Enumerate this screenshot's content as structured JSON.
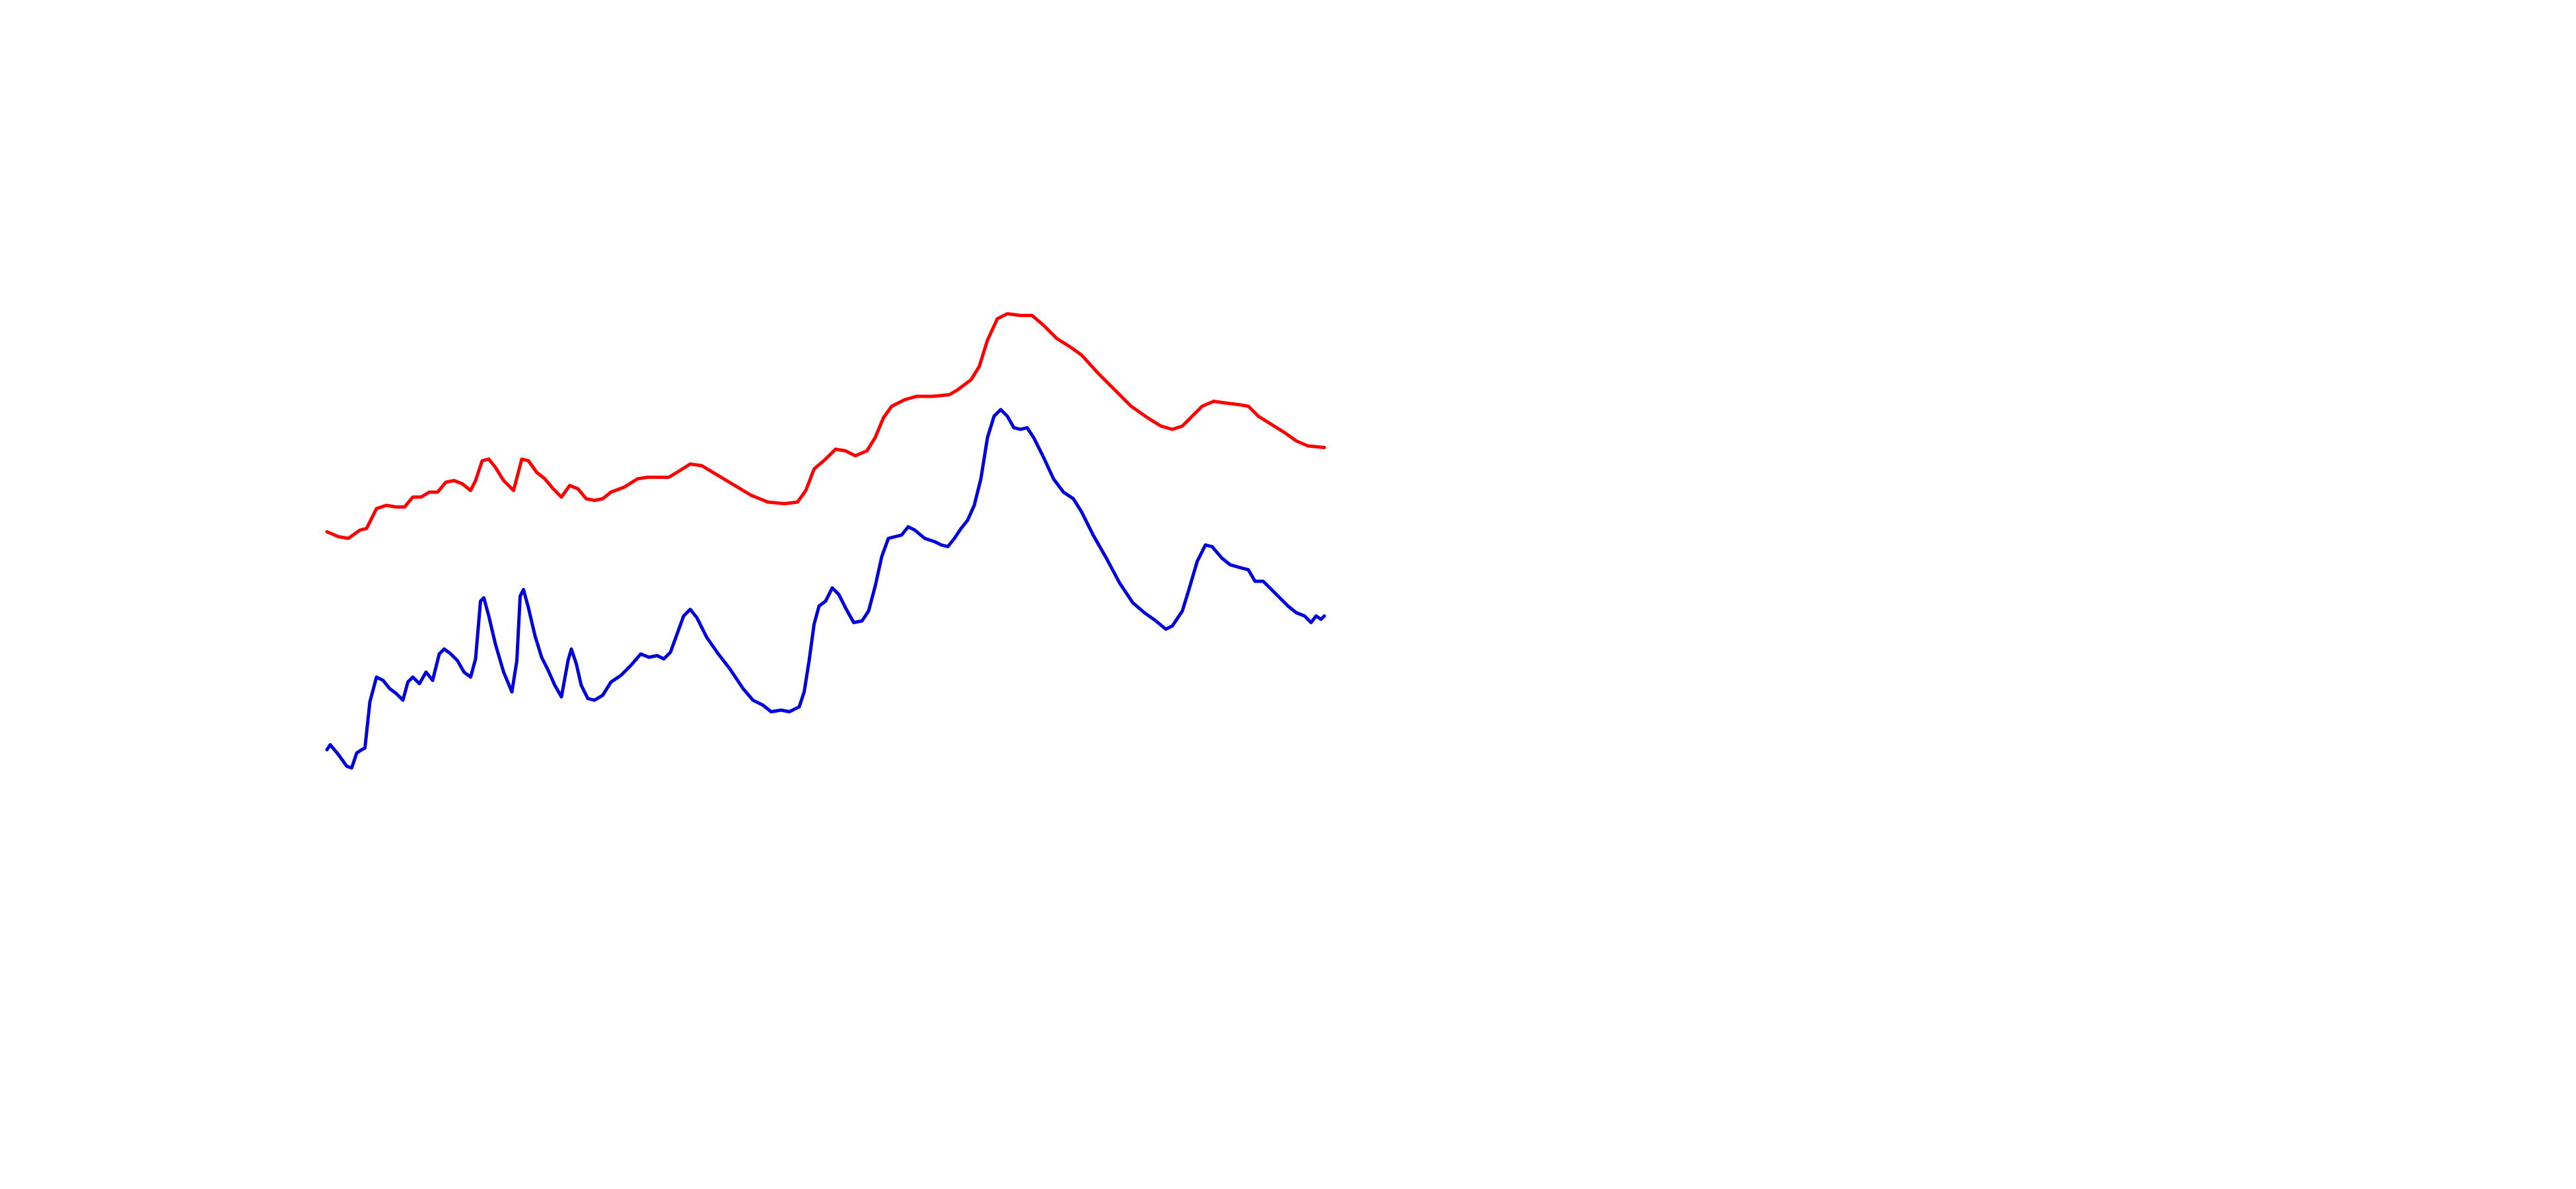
{
  "chart_data": {
    "type": "line",
    "xlim": [
      0,
      1560
    ],
    "ylim": [
      0,
      720
    ],
    "series": [
      {
        "color": "#ff0000",
        "x": [
          198,
          205,
          211,
          218,
          222,
          228,
          234,
          240,
          245,
          250,
          255,
          260,
          265,
          270,
          275,
          280,
          285,
          288,
          292,
          296,
          300,
          305,
          311,
          316,
          320,
          325,
          330,
          335,
          340,
          345,
          350,
          355,
          360,
          365,
          370,
          378,
          386,
          392,
          398,
          405,
          410,
          418,
          425,
          435,
          445,
          455,
          465,
          475,
          483,
          488,
          493,
          500,
          506,
          512,
          518,
          525,
          530,
          535,
          540,
          548,
          555,
          565,
          575,
          580,
          588,
          593,
          598,
          604,
          610,
          618,
          625,
          632,
          640,
          648,
          655,
          665,
          675,
          685,
          695,
          703,
          710,
          716,
          722,
          728,
          735,
          742,
          750,
          756,
          762,
          770,
          778,
          785,
          792,
          802
        ],
        "values": [
          398,
          395,
          394,
          399,
          400,
          412,
          414,
          413,
          413,
          419,
          419,
          422,
          422,
          428,
          429,
          427,
          423,
          429,
          441,
          442,
          437,
          429,
          423,
          442,
          441,
          434,
          430,
          424,
          419,
          426,
          424,
          418,
          417,
          418,
          422,
          425,
          430,
          431,
          431,
          431,
          434,
          439,
          438,
          432,
          426,
          420,
          416,
          415,
          416,
          423,
          436,
          442,
          448,
          447,
          444,
          447,
          455,
          467,
          474,
          478,
          480,
          480,
          481,
          484,
          490,
          498,
          514,
          527,
          530,
          529,
          529,
          523,
          515,
          510,
          505,
          494,
          484,
          474,
          467,
          462,
          460,
          462,
          468,
          474,
          477,
          476,
          475,
          474,
          468,
          463,
          458,
          453,
          450,
          449
        ]
      },
      {
        "color": "#0000dd",
        "x": [
          198,
          200,
          205,
          210,
          213,
          216,
          219,
          221,
          224,
          228,
          232,
          236,
          240,
          244,
          247,
          250,
          254,
          258,
          262,
          266,
          269,
          273,
          277,
          281,
          285,
          288,
          291,
          293,
          296,
          300,
          305,
          310,
          313,
          315,
          317,
          320,
          324,
          328,
          332,
          336,
          340,
          344,
          346,
          349,
          352,
          356,
          360,
          365,
          370,
          376,
          382,
          388,
          393,
          398,
          402,
          406,
          410,
          414,
          418,
          422,
          428,
          435,
          442,
          450,
          456,
          462,
          467,
          473,
          478,
          484,
          487,
          490,
          493,
          496,
          500,
          504,
          508,
          512,
          517,
          522,
          526,
          530,
          534,
          538,
          542,
          546,
          550,
          554,
          560,
          566,
          570,
          574,
          578,
          582,
          586,
          590,
          594,
          598,
          602,
          606,
          610,
          614,
          618,
          622,
          626,
          632,
          638,
          644,
          650,
          655,
          662,
          670,
          678,
          686,
          693,
          700,
          706,
          710,
          716,
          720,
          725,
          730,
          734,
          740,
          745,
          752,
          756,
          760,
          765,
          770,
          775,
          780,
          785,
          790,
          794,
          797,
          800,
          802
        ],
        "values": [
          266,
          269,
          263,
          256,
          255,
          264,
          266,
          267,
          295,
          310,
          308,
          303,
          300,
          296,
          307,
          310,
          306,
          313,
          308,
          324,
          327,
          324,
          320,
          313,
          310,
          321,
          356,
          358,
          347,
          330,
          313,
          301,
          320,
          359,
          363,
          352,
          335,
          322,
          314,
          305,
          298,
          320,
          327,
          318,
          305,
          297,
          296,
          299,
          307,
          311,
          317,
          324,
          322,
          323,
          321,
          325,
          336,
          347,
          351,
          346,
          334,
          324,
          315,
          303,
          296,
          293,
          289,
          290,
          289,
          292,
          301,
          320,
          342,
          353,
          356,
          364,
          360,
          352,
          343,
          344,
          350,
          365,
          383,
          394,
          395,
          396,
          401,
          399,
          394,
          392,
          390,
          389,
          394,
          400,
          405,
          414,
          430,
          455,
          468,
          472,
          468,
          461,
          460,
          461,
          455,
          443,
          430,
          422,
          418,
          410,
          396,
          382,
          367,
          355,
          349,
          344,
          339,
          341,
          350,
          363,
          380,
          390,
          389,
          382,
          378,
          376,
          375,
          368,
          368,
          363,
          358,
          353,
          349,
          347,
          343,
          347,
          345,
          347
        ]
      }
    ]
  }
}
